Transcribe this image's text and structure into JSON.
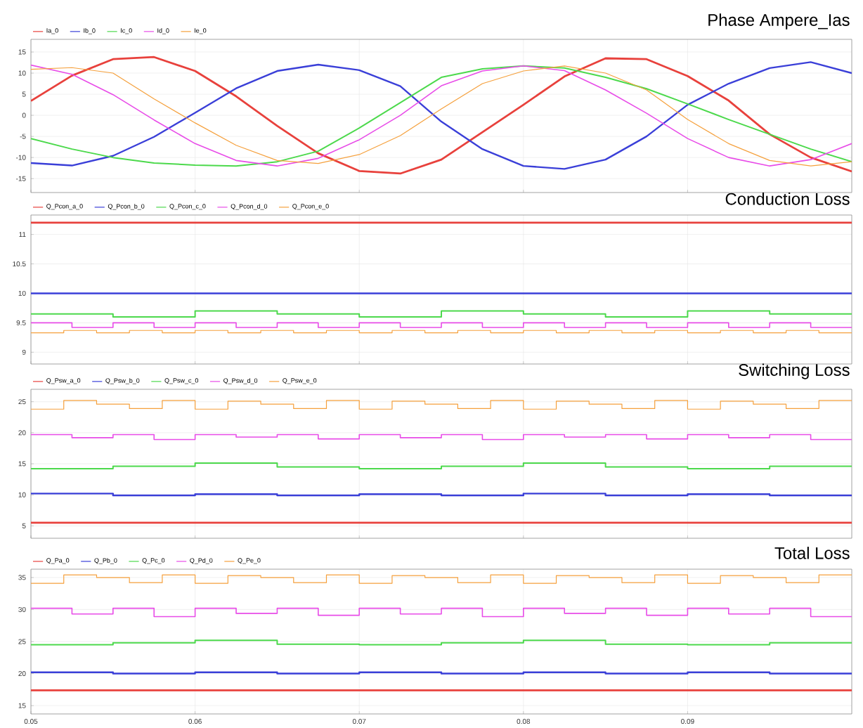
{
  "chart_data": [
    {
      "type": "line",
      "title": "Phase Ampere_Ias",
      "x": [
        0.05,
        0.0525,
        0.055,
        0.0575,
        0.06,
        0.0625,
        0.065,
        0.0675,
        0.07,
        0.0725,
        0.075,
        0.0775,
        0.08,
        0.0825,
        0.085,
        0.0875,
        0.09,
        0.0925,
        0.095,
        0.0975,
        0.1
      ],
      "xlim": [
        0.05,
        0.1
      ],
      "xticks": [
        0.05,
        0.06,
        0.07,
        0.08,
        0.09
      ],
      "ylim": [
        -18.3,
        18
      ],
      "yticks": [
        -15,
        -10,
        -5,
        0,
        5,
        10,
        15
      ],
      "grid": true,
      "legend": "top left",
      "tick_labels": "y",
      "series": [
        {
          "name": "Ia_0",
          "color": "#e8413c",
          "values": [
            3.4,
            9.4,
            13.3,
            13.8,
            10.5,
            4.5,
            -2.5,
            -9,
            -13.2,
            -13.8,
            -10.5,
            -4,
            2.5,
            9.2,
            13.5,
            13.3,
            9.3,
            3.5,
            -4.5,
            -10,
            -13.3
          ]
        },
        {
          "name": "Ib_0",
          "color": "#3a3fd8",
          "values": [
            -11.3,
            -11.9,
            -9.6,
            -5.1,
            0.6,
            6.4,
            10.5,
            12,
            10.7,
            6.9,
            -1.5,
            -8,
            -12,
            -12.7,
            -10.5,
            -5,
            2.5,
            7.5,
            11.2,
            12.6,
            10
          ]
        },
        {
          "name": "Ic_0",
          "color": "#4cd94c",
          "values": [
            -5.5,
            -8,
            -10,
            -11.3,
            -11.8,
            -12,
            -11,
            -8.5,
            -3,
            3,
            9,
            11,
            11.7,
            11.2,
            9,
            6.3,
            2.7,
            -1,
            -4.5,
            -8,
            -11
          ]
        },
        {
          "name": "Id_0",
          "color": "#e84ce8",
          "values": [
            11.9,
            9.7,
            4.9,
            -1.1,
            -6.7,
            -10.7,
            -12,
            -10.2,
            -5.8,
            0,
            7,
            10.5,
            11.7,
            10.6,
            6,
            0.5,
            -5.5,
            -10,
            -12,
            -10.5,
            -6.7
          ]
        },
        {
          "name": "Ie_0",
          "color": "#f5a03c",
          "values": [
            10.9,
            11.3,
            10,
            3.9,
            -1.8,
            -7.1,
            -10.7,
            -11.4,
            -9.3,
            -4.8,
            1.5,
            7.5,
            10.5,
            11.7,
            10,
            6,
            -1,
            -6.7,
            -10.7,
            -12,
            -11
          ]
        }
      ]
    },
    {
      "type": "step",
      "title": "Conduction Loss",
      "xlim": [
        0.05,
        0.1
      ],
      "xticks": [
        0.05,
        0.06,
        0.07,
        0.08,
        0.09
      ],
      "ylim": [
        8.8,
        11.33
      ],
      "yticks": [
        9,
        9.5,
        10,
        10.5,
        11
      ],
      "grid": true,
      "legend": "top left",
      "tick_labels": "y",
      "series": [
        {
          "name": "Q_Pcon_a_0",
          "color": "#e8413c",
          "x": [
            0.05,
            0.1
          ],
          "values": [
            11.2,
            11.2
          ]
        },
        {
          "name": "Q_Pcon_b_0",
          "color": "#3a3fd8",
          "x": [
            0.05,
            0.1
          ],
          "values": [
            10,
            10
          ]
        },
        {
          "name": "Q_Pcon_c_0",
          "color": "#4cd94c",
          "x": [
            0.05,
            0.055,
            0.06,
            0.065,
            0.07,
            0.075,
            0.08,
            0.085,
            0.09,
            0.095,
            0.1
          ],
          "values": [
            9.65,
            9.6,
            9.7,
            9.65,
            9.6,
            9.7,
            9.65,
            9.6,
            9.7,
            9.65,
            9.65
          ]
        },
        {
          "name": "Q_Pcon_d_0",
          "color": "#e84ce8",
          "x": [
            0.05,
            0.0525,
            0.055,
            0.0575,
            0.06,
            0.0625,
            0.065,
            0.0675,
            0.07,
            0.0725,
            0.075,
            0.0775,
            0.08,
            0.0825,
            0.085,
            0.0875,
            0.09,
            0.0925,
            0.095,
            0.0975,
            0.1
          ],
          "values": [
            9.5,
            9.42,
            9.5,
            9.42,
            9.5,
            9.42,
            9.5,
            9.42,
            9.5,
            9.42,
            9.5,
            9.42,
            9.5,
            9.42,
            9.5,
            9.42,
            9.5,
            9.42,
            9.5,
            9.42,
            9.42
          ]
        },
        {
          "name": "Q_Pcon_e_0",
          "color": "#f5a03c",
          "x": [
            0.05,
            0.052,
            0.054,
            0.056,
            0.058,
            0.06,
            0.062,
            0.064,
            0.066,
            0.068,
            0.07,
            0.072,
            0.074,
            0.076,
            0.078,
            0.08,
            0.082,
            0.084,
            0.086,
            0.088,
            0.09,
            0.092,
            0.094,
            0.096,
            0.098,
            0.1
          ],
          "values": [
            9.33,
            9.37,
            9.33,
            9.37,
            9.33,
            9.37,
            9.33,
            9.37,
            9.33,
            9.37,
            9.33,
            9.37,
            9.33,
            9.37,
            9.33,
            9.37,
            9.33,
            9.37,
            9.33,
            9.37,
            9.33,
            9.37,
            9.33,
            9.37,
            9.33,
            9.33
          ]
        }
      ]
    },
    {
      "type": "step",
      "title": "Switching Loss",
      "xlim": [
        0.05,
        0.1
      ],
      "xticks": [
        0.05,
        0.06,
        0.07,
        0.08,
        0.09
      ],
      "ylim": [
        3,
        27
      ],
      "yticks": [
        5,
        10,
        15,
        20,
        25
      ],
      "grid": true,
      "legend": "top left",
      "tick_labels": "y",
      "series": [
        {
          "name": "Q_Psw_a_0",
          "color": "#e8413c",
          "x": [
            0.05,
            0.1
          ],
          "values": [
            5.5,
            5.5
          ]
        },
        {
          "name": "Q_Psw_b_0",
          "color": "#3a3fd8",
          "x": [
            0.05,
            0.055,
            0.06,
            0.065,
            0.07,
            0.075,
            0.08,
            0.085,
            0.09,
            0.095,
            0.1
          ],
          "values": [
            10.2,
            9.9,
            10.1,
            9.9,
            10.1,
            9.9,
            10.2,
            9.9,
            10.1,
            9.9,
            9.9
          ]
        },
        {
          "name": "Q_Psw_c_0",
          "color": "#4cd94c",
          "x": [
            0.05,
            0.055,
            0.06,
            0.065,
            0.07,
            0.075,
            0.08,
            0.085,
            0.09,
            0.095,
            0.1
          ],
          "values": [
            14.2,
            14.6,
            15.1,
            14.5,
            14.2,
            14.6,
            15.1,
            14.5,
            14.2,
            14.6,
            14.6
          ]
        },
        {
          "name": "Q_Psw_d_0",
          "color": "#e84ce8",
          "x": [
            0.05,
            0.0525,
            0.055,
            0.0575,
            0.06,
            0.0625,
            0.065,
            0.0675,
            0.07,
            0.0725,
            0.075,
            0.0775,
            0.08,
            0.0825,
            0.085,
            0.0875,
            0.09,
            0.0925,
            0.095,
            0.0975,
            0.1
          ],
          "values": [
            19.7,
            19.2,
            19.7,
            18.9,
            19.7,
            19.3,
            19.7,
            19.0,
            19.7,
            19.2,
            19.7,
            18.9,
            19.7,
            19.3,
            19.7,
            19.0,
            19.7,
            19.2,
            19.7,
            18.9,
            18.9
          ]
        },
        {
          "name": "Q_Psw_e_0",
          "color": "#f5a03c",
          "x": [
            0.05,
            0.052,
            0.054,
            0.056,
            0.058,
            0.06,
            0.062,
            0.064,
            0.066,
            0.068,
            0.07,
            0.072,
            0.074,
            0.076,
            0.078,
            0.08,
            0.082,
            0.084,
            0.086,
            0.088,
            0.09,
            0.092,
            0.094,
            0.096,
            0.098,
            0.1
          ],
          "values": [
            23.8,
            25.2,
            24.6,
            23.9,
            25.2,
            23.8,
            25.1,
            24.6,
            23.9,
            25.2,
            23.8,
            25.1,
            24.6,
            23.9,
            25.2,
            23.8,
            25.1,
            24.6,
            23.9,
            25.2,
            23.8,
            25.1,
            24.6,
            23.9,
            25.2,
            25.2
          ]
        }
      ]
    },
    {
      "type": "step",
      "title": "Total Loss",
      "xlim": [
        0.05,
        0.1
      ],
      "xticks": [
        0.05,
        0.06,
        0.07,
        0.08,
        0.09
      ],
      "ylim": [
        13.7,
        36.3
      ],
      "yticks": [
        15,
        20,
        25,
        30,
        35
      ],
      "grid": true,
      "legend": "top left",
      "series": [
        {
          "name": "Q_Pa_0",
          "color": "#e8413c",
          "x": [
            0.05,
            0.1
          ],
          "values": [
            17.4,
            17.4
          ]
        },
        {
          "name": "Q_Pb_0",
          "color": "#3a3fd8",
          "x": [
            0.05,
            0.055,
            0.06,
            0.065,
            0.07,
            0.075,
            0.08,
            0.085,
            0.09,
            0.095,
            0.1
          ],
          "values": [
            20.2,
            20,
            20.2,
            20,
            20.2,
            20,
            20.2,
            20,
            20.2,
            20,
            20
          ]
        },
        {
          "name": "Q_Pc_0",
          "color": "#4cd94c",
          "x": [
            0.05,
            0.055,
            0.06,
            0.065,
            0.07,
            0.075,
            0.08,
            0.085,
            0.09,
            0.095,
            0.1
          ],
          "values": [
            24.5,
            24.8,
            25.2,
            24.6,
            24.5,
            24.8,
            25.2,
            24.6,
            24.5,
            24.8,
            24.8
          ]
        },
        {
          "name": "Q_Pd_0",
          "color": "#e84ce8",
          "x": [
            0.05,
            0.0525,
            0.055,
            0.0575,
            0.06,
            0.0625,
            0.065,
            0.0675,
            0.07,
            0.0725,
            0.075,
            0.0775,
            0.08,
            0.0825,
            0.085,
            0.0875,
            0.09,
            0.0925,
            0.095,
            0.0975,
            0.1
          ],
          "values": [
            30.2,
            29.3,
            30.2,
            28.9,
            30.2,
            29.4,
            30.2,
            29.1,
            30.2,
            29.3,
            30.2,
            28.9,
            30.2,
            29.4,
            30.2,
            29.1,
            30.2,
            29.3,
            30.2,
            28.9,
            28.9
          ]
        },
        {
          "name": "Q_Pe_0",
          "color": "#f5a03c",
          "x": [
            0.05,
            0.052,
            0.054,
            0.056,
            0.058,
            0.06,
            0.062,
            0.064,
            0.066,
            0.068,
            0.07,
            0.072,
            0.074,
            0.076,
            0.078,
            0.08,
            0.082,
            0.084,
            0.086,
            0.088,
            0.09,
            0.092,
            0.094,
            0.096,
            0.098,
            0.1
          ],
          "values": [
            34.1,
            35.4,
            35,
            34.2,
            35.4,
            34.1,
            35.3,
            35,
            34.2,
            35.4,
            34.1,
            35.3,
            35,
            34.2,
            35.4,
            34.1,
            35.3,
            35,
            34.2,
            35.4,
            34.1,
            35.3,
            35,
            34.2,
            35.4,
            35.4
          ]
        }
      ]
    }
  ]
}
